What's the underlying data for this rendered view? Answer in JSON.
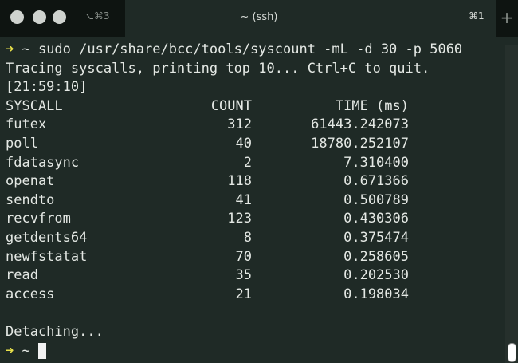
{
  "window": {
    "tab_shortcut": "⌥⌘3",
    "title": "~ (ssh)",
    "tab_number": "⌘1",
    "new_tab_label": "+"
  },
  "terminal": {
    "prompt_symbol": "➜",
    "command": " ~ sudo /usr/share/bcc/tools/syscount -mL -d 30 -p 5060",
    "info": "Tracing syscalls, printing top 10... Ctrl+C to quit.",
    "timestamp": "[21:59:10]",
    "headers": [
      "SYSCALL",
      "COUNT",
      "TIME (ms)"
    ],
    "rows": [
      [
        "futex",
        "312",
        "61443.242073"
      ],
      [
        "poll",
        "40",
        "18780.252107"
      ],
      [
        "fdatasync",
        "2",
        "7.310400"
      ],
      [
        "openat",
        "118",
        "0.671366"
      ],
      [
        "sendto",
        "41",
        "0.500789"
      ],
      [
        "recvfrom",
        "123",
        "0.430306"
      ],
      [
        "getdents64",
        "8",
        "0.375474"
      ],
      [
        "newfstatat",
        "70",
        "0.258605"
      ],
      [
        "read",
        "35",
        "0.202530"
      ],
      [
        "access",
        "21",
        "0.198034"
      ]
    ],
    "detach": "Detaching...",
    "final_prompt": " ~ "
  }
}
